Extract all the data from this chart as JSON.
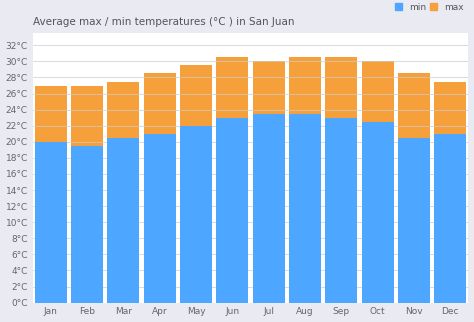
{
  "months": [
    "Jan",
    "Feb",
    "Mar",
    "Apr",
    "May",
    "Jun",
    "Jul",
    "Aug",
    "Sep",
    "Oct",
    "Nov",
    "Dec"
  ],
  "min_temps": [
    20,
    19.5,
    20.5,
    21,
    22,
    23,
    23.5,
    23.5,
    23,
    22.5,
    20.5,
    21
  ],
  "max_temps": [
    27,
    27,
    27.5,
    28.5,
    29.5,
    30.5,
    30,
    30.5,
    30.5,
    30,
    28.5,
    27.5
  ],
  "min_color": "#4da6ff",
  "max_color": "#f5a03a",
  "title": "Average max / min temperatures (°C ) in San Juan",
  "title_fontsize": 7.5,
  "y_tick_values": [
    0,
    2,
    4,
    6,
    8,
    10,
    12,
    14,
    16,
    18,
    20,
    22,
    24,
    26,
    28,
    30,
    32
  ],
  "ylim": [
    0,
    33.5
  ],
  "background_color": "#eaeaf2",
  "plot_bg_color": "#ffffff",
  "legend_min_label": "min",
  "legend_max_label": "max",
  "legend_min_color": "#4da6ff",
  "legend_max_color": "#f5a03a",
  "bar_width": 0.88
}
